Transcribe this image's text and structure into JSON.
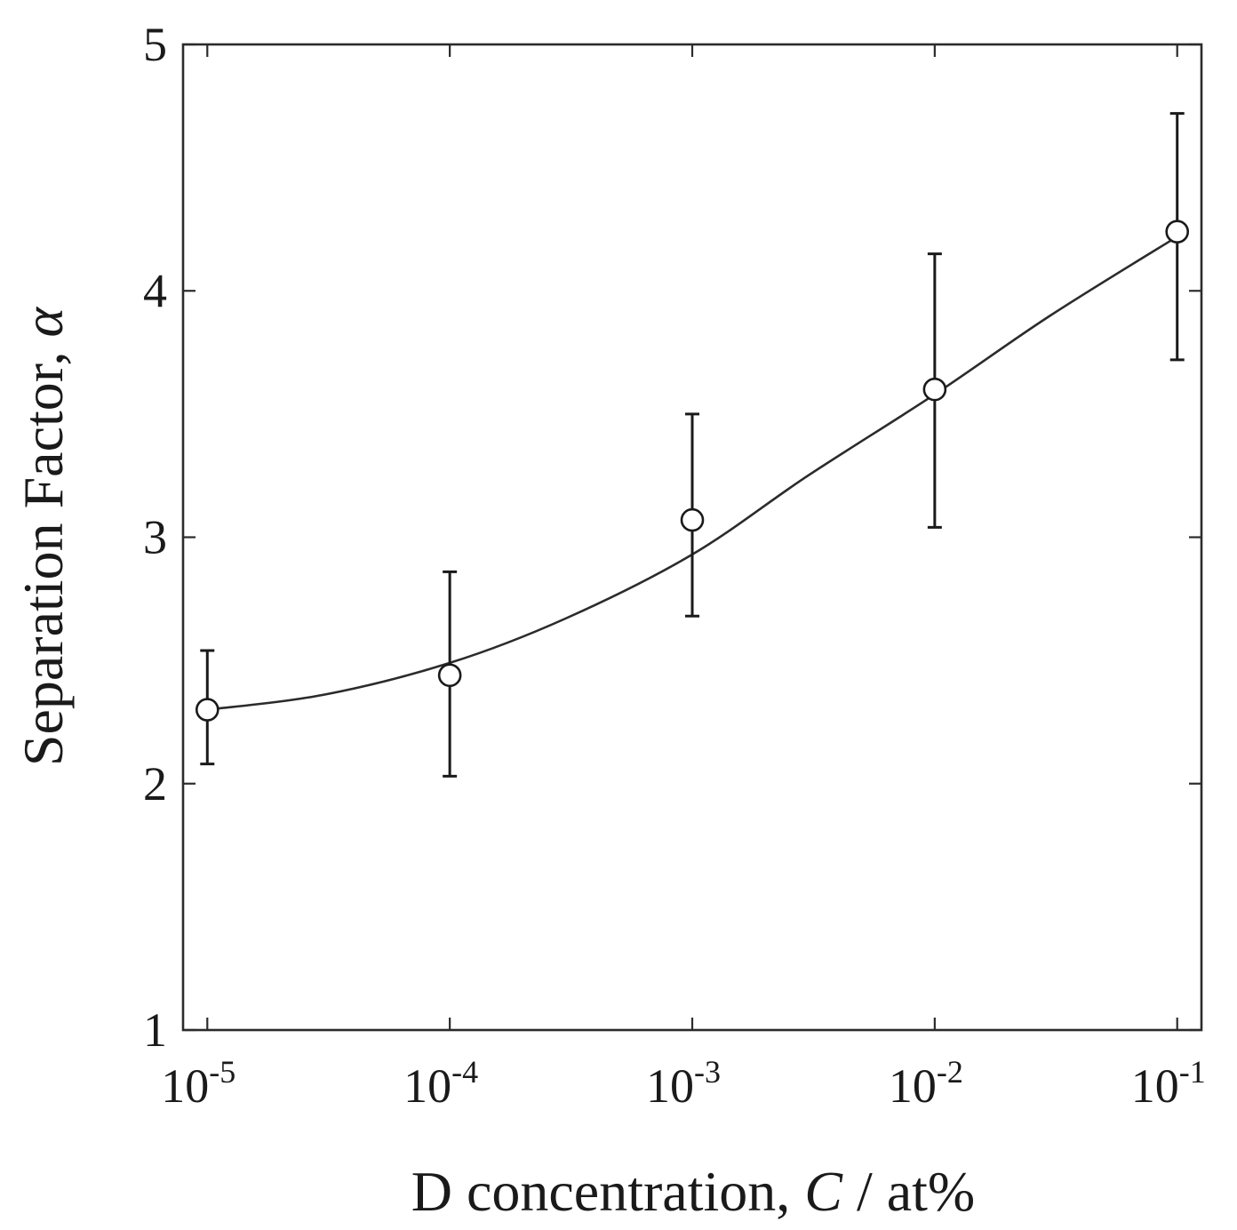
{
  "chart_data": {
    "type": "scatter",
    "title": "",
    "xlabel": "D concentration, ",
    "xlabel_var": "C",
    "xlabel_unit": " / at%",
    "ylabel": "Separation Factor, ",
    "ylabel_var": "α",
    "xscale": "log",
    "xlim_exp": [
      -5.1,
      -0.9
    ],
    "ylim": [
      1,
      5
    ],
    "x_tick_exponents": [
      -5,
      -4,
      -3,
      -2,
      -1
    ],
    "x_tick_base": "10",
    "x_tick_sup": [
      "-5",
      "-4",
      "-3",
      "-2",
      "-1"
    ],
    "y_ticks": [
      1,
      2,
      3,
      4,
      5
    ],
    "y_tick_labels": [
      "1",
      "2",
      "3",
      "4",
      "5"
    ],
    "grid": false,
    "series": [
      {
        "name": "measured",
        "marker": "open-circle",
        "x": [
          1e-05,
          0.0001,
          0.001,
          0.01,
          0.1
        ],
        "y": [
          2.3,
          2.44,
          3.07,
          3.6,
          4.24
        ],
        "yerr_low": [
          2.08,
          2.03,
          2.68,
          3.04,
          3.72
        ],
        "yerr_high": [
          2.54,
          2.86,
          3.5,
          4.15,
          4.72
        ]
      },
      {
        "name": "fit",
        "style": "line",
        "x": [
          1e-05,
          3e-05,
          0.0001,
          0.0003,
          0.001,
          0.003,
          0.01,
          0.03,
          0.1
        ],
        "y": [
          2.3,
          2.36,
          2.49,
          2.67,
          2.93,
          3.25,
          3.58,
          3.9,
          4.22
        ]
      }
    ]
  }
}
